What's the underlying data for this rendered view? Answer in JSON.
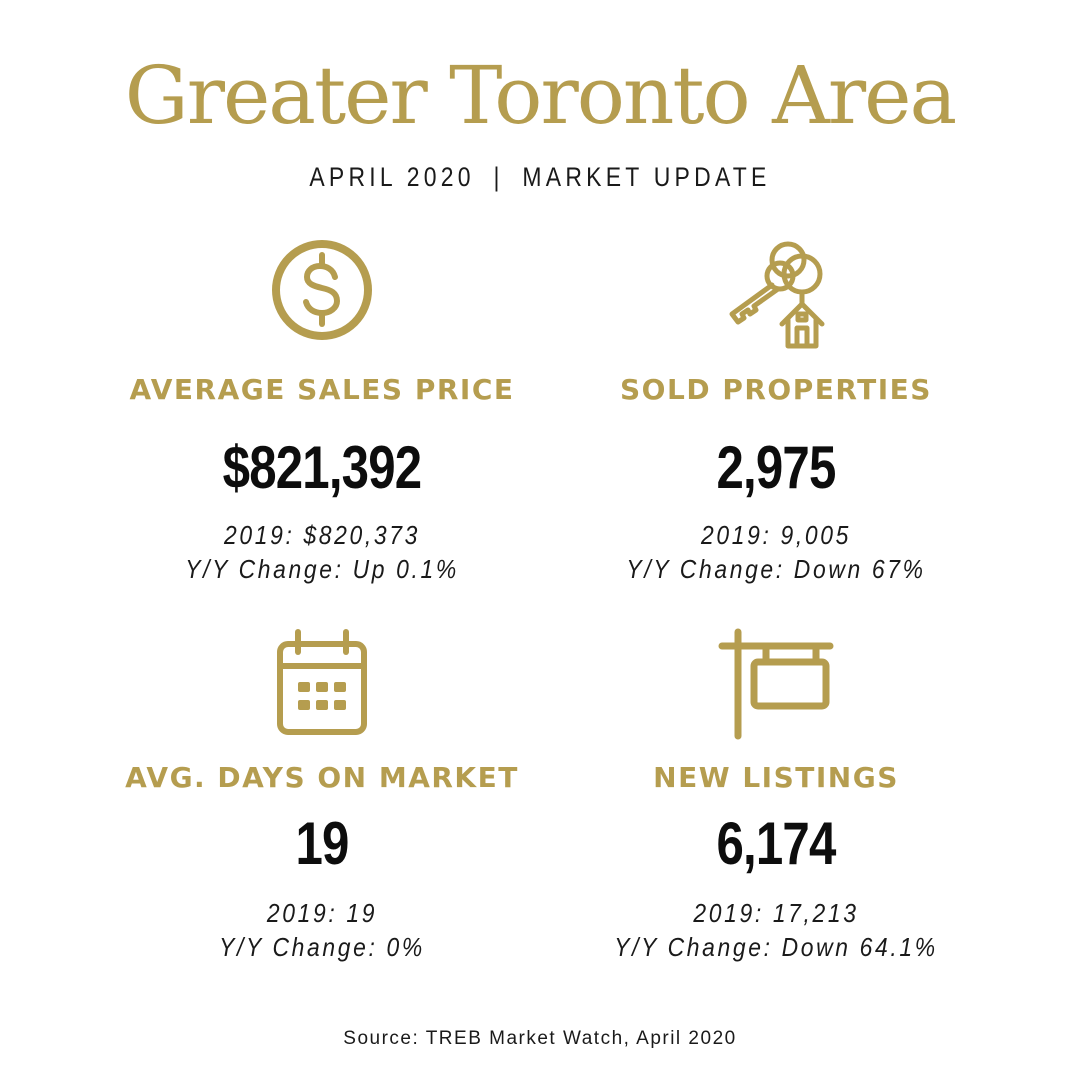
{
  "header": {
    "title": "Greater Toronto Area",
    "subtitle_left": "APRIL 2020",
    "subtitle_separator": "|",
    "subtitle_right": "MARKET UPDATE"
  },
  "colors": {
    "gold": "#b59d4f",
    "text": "#1a1a1a",
    "value": "#0d0d0d"
  },
  "metrics": [
    {
      "icon": "dollar-sign-icon",
      "label": "AVERAGE SALES PRICE",
      "value": "$821,392",
      "prior_year": "2019: $820,373",
      "change": "Y/Y Change: Up 0.1%"
    },
    {
      "icon": "keys-house-icon",
      "label": "SOLD PROPERTIES",
      "value": "2,975",
      "prior_year": "2019: 9,005",
      "change": "Y/Y Change: Down 67%"
    },
    {
      "icon": "calendar-icon",
      "label": "AVG. DAYS ON MARKET",
      "value": "19",
      "prior_year": "2019: 19",
      "change": "Y/Y Change: 0%"
    },
    {
      "icon": "listing-sign-icon",
      "label": "NEW LISTINGS",
      "value": "6,174",
      "prior_year": "2019: 17,213",
      "change": "Y/Y Change: Down 64.1%"
    }
  ],
  "footer": {
    "source": "Source: TREB Market Watch, April 2020"
  }
}
